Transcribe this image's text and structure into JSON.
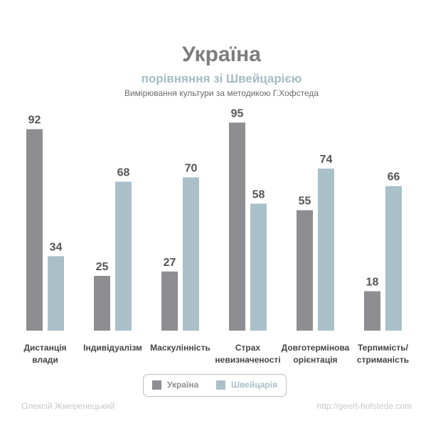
{
  "header": {
    "title": "Україна",
    "subtitle": "порівняння зі Швейцарією",
    "description": "Вимірювання культури за методикою Г.Хофстеда"
  },
  "colors": {
    "ukraine": "#8e8d91",
    "switzerland": "#a9c0c8",
    "category_text": "#444444",
    "value_text": "#555555"
  },
  "chart_data": {
    "type": "bar",
    "categories": [
      [
        "Дистанція",
        "влади"
      ],
      [
        "Індивідуалізм"
      ],
      [
        "Маскулінність"
      ],
      [
        "Страх",
        "невизначеності"
      ],
      [
        "Довготермінова",
        "орієнтація"
      ],
      [
        "Терпимість/",
        "стриманість"
      ]
    ],
    "series": [
      {
        "name": "Україна",
        "values": [
          92,
          25,
          27,
          95,
          55,
          18
        ]
      },
      {
        "name": "Швейцарія",
        "values": [
          34,
          68,
          70,
          58,
          74,
          66
        ]
      }
    ],
    "ylim": [
      0,
      100
    ],
    "grid": false,
    "legend_position": "bottom"
  },
  "legend": {
    "ukraine_label": "Україна",
    "switzerland_label": "Швейцарія"
  },
  "footer": {
    "author": "Олексій Жмеренецький",
    "source": "http://geert-hofstede.com"
  }
}
